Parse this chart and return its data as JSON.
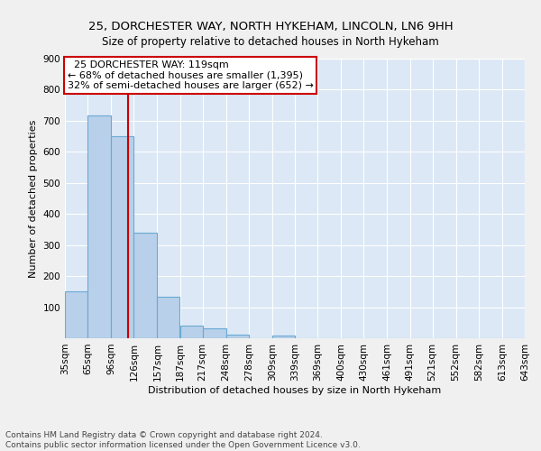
{
  "title1": "25, DORCHESTER WAY, NORTH HYKEHAM, LINCOLN, LN6 9HH",
  "title2": "Size of property relative to detached houses in North Hykeham",
  "xlabel": "Distribution of detached houses by size in North Hykeham",
  "ylabel": "Number of detached properties",
  "footer1": "Contains HM Land Registry data © Crown copyright and database right 2024.",
  "footer2": "Contains public sector information licensed under the Open Government Licence v3.0.",
  "annotation_line1": "  25 DORCHESTER WAY: 119sqm",
  "annotation_line2": "← 68% of detached houses are smaller (1,395)",
  "annotation_line3": "32% of semi-detached houses are larger (652) →",
  "bar_edges": [
    35,
    65,
    96,
    126,
    157,
    187,
    217,
    248,
    278,
    309,
    339,
    369,
    400,
    430,
    461,
    491,
    521,
    552,
    582,
    613,
    643
  ],
  "bar_heights": [
    152,
    718,
    651,
    341,
    133,
    42,
    33,
    13,
    0,
    10,
    0,
    0,
    0,
    0,
    0,
    0,
    0,
    0,
    0,
    0
  ],
  "bar_color": "#b8d0ea",
  "bar_edge_color": "#6aaad4",
  "ref_line_color": "#cc0000",
  "ref_line_x": 119,
  "annotation_box_color": "#ffffff",
  "annotation_box_edge": "#cc0000",
  "plot_bg_color": "#dce8f5",
  "fig_bg_color": "#f0f0f0",
  "ylim": [
    0,
    900
  ],
  "yticks": [
    0,
    100,
    200,
    300,
    400,
    500,
    600,
    700,
    800,
    900
  ],
  "tick_labels": [
    "35sqm",
    "65sqm",
    "96sqm",
    "126sqm",
    "157sqm",
    "187sqm",
    "217sqm",
    "248sqm",
    "278sqm",
    "309sqm",
    "339sqm",
    "369sqm",
    "400sqm",
    "430sqm",
    "461sqm",
    "491sqm",
    "521sqm",
    "552sqm",
    "582sqm",
    "613sqm",
    "643sqm"
  ],
  "title1_fontsize": 9.5,
  "title2_fontsize": 8.5,
  "xlabel_fontsize": 8.0,
  "ylabel_fontsize": 8.0,
  "tick_fontsize": 7.5,
  "footer_fontsize": 6.5,
  "annotation_fontsize": 8.0
}
